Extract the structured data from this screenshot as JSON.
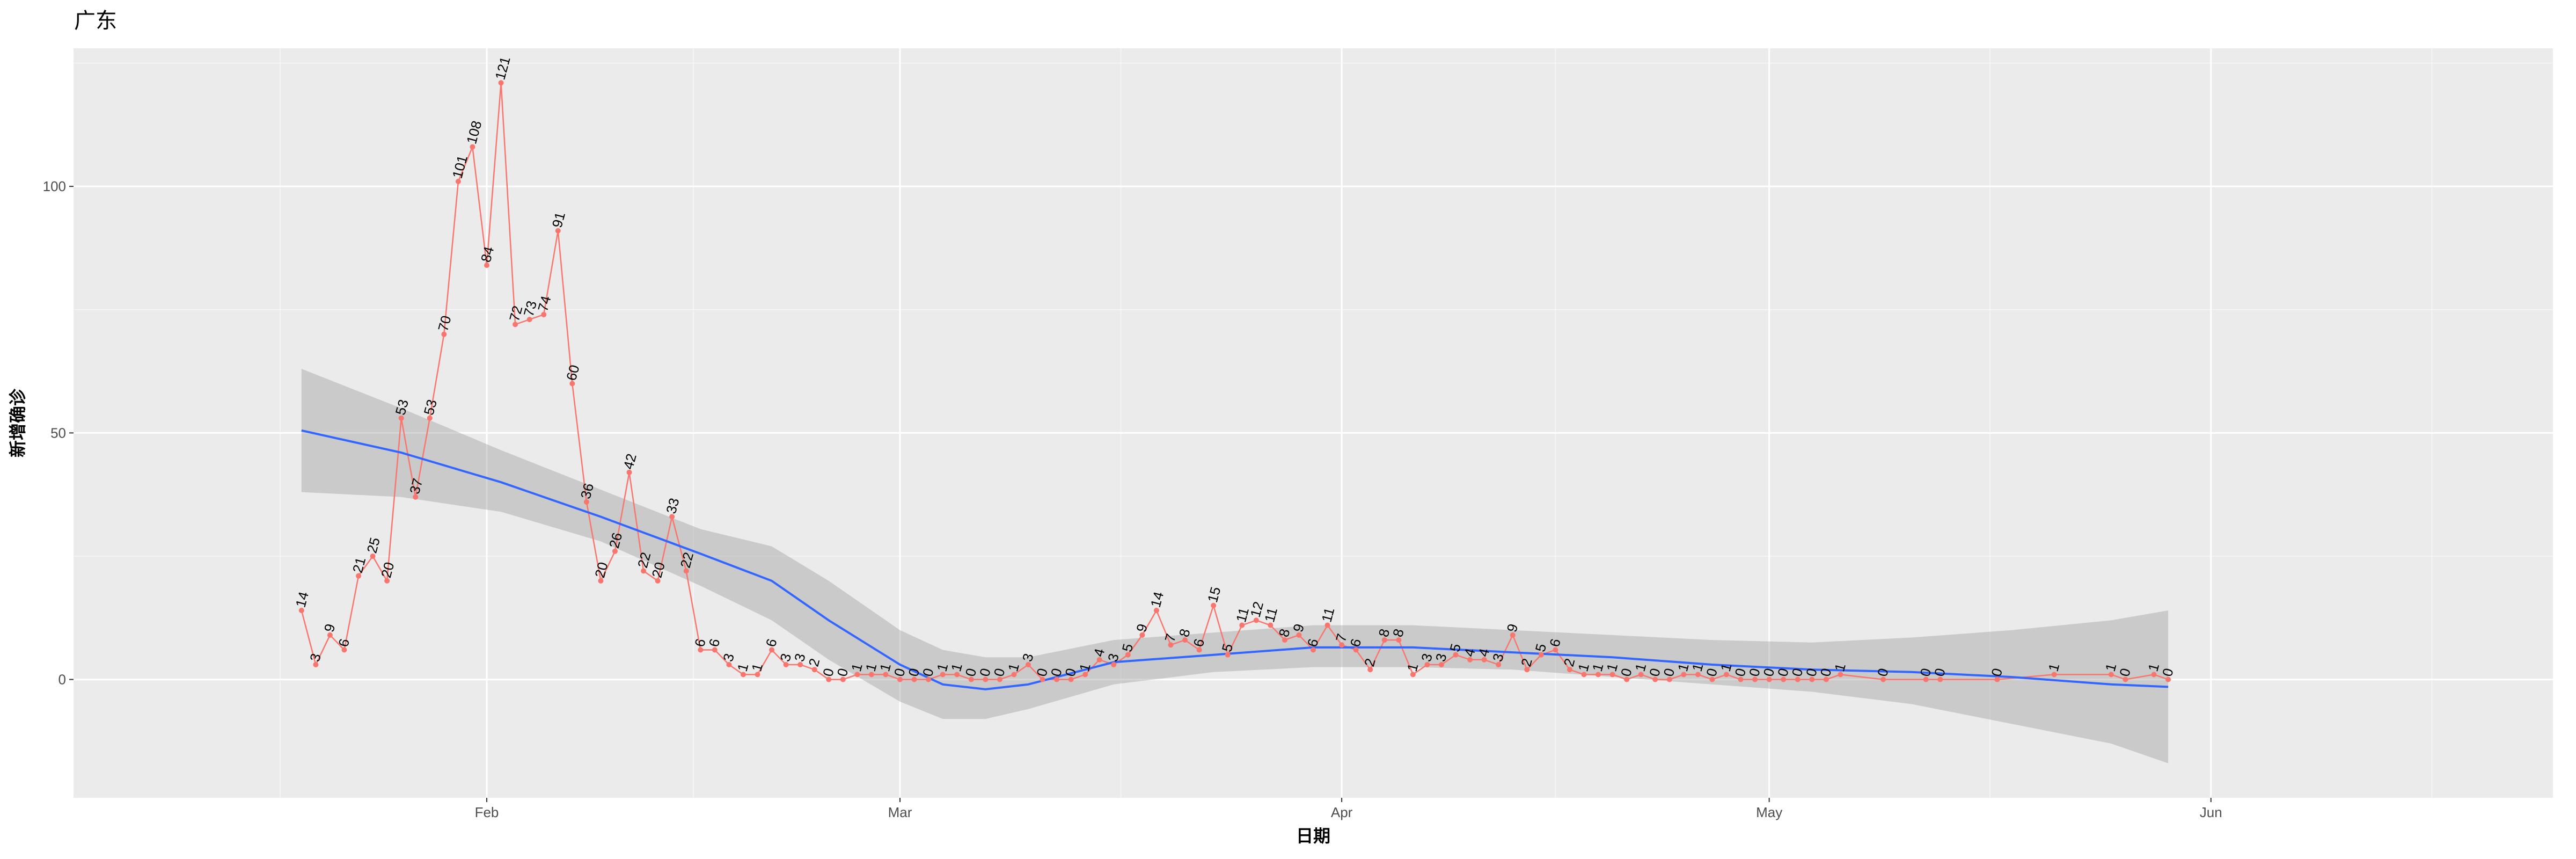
{
  "chart_data": {
    "type": "line",
    "title": "广东",
    "xlabel": "日期",
    "ylabel": "新增确诊",
    "x_tick_labels": [
      "Feb",
      "Mar",
      "Apr",
      "May",
      "Jun"
    ],
    "x_tick_dates": [
      "2020-02-01",
      "2020-03-01",
      "2020-04-01",
      "2020-05-01",
      "2020-06-01"
    ],
    "xlim": [
      "2020-01-03",
      "2020-06-25"
    ],
    "y_ticks": [
      0,
      50,
      100
    ],
    "ylim": [
      -24,
      128
    ],
    "grid": true,
    "legend": "none",
    "series": [
      {
        "kind": "observed",
        "color": "#F8766D",
        "points": [
          {
            "date": "2020-01-19",
            "value": 14
          },
          {
            "date": "2020-01-20",
            "value": 3
          },
          {
            "date": "2020-01-21",
            "value": 9
          },
          {
            "date": "2020-01-22",
            "value": 6
          },
          {
            "date": "2020-01-23",
            "value": 21
          },
          {
            "date": "2020-01-24",
            "value": 25
          },
          {
            "date": "2020-01-25",
            "value": 20
          },
          {
            "date": "2020-01-26",
            "value": 53
          },
          {
            "date": "2020-01-27",
            "value": 37
          },
          {
            "date": "2020-01-28",
            "value": 53
          },
          {
            "date": "2020-01-29",
            "value": 70
          },
          {
            "date": "2020-01-30",
            "value": 101
          },
          {
            "date": "2020-01-31",
            "value": 108
          },
          {
            "date": "2020-02-01",
            "value": 84
          },
          {
            "date": "2020-02-02",
            "value": 121
          },
          {
            "date": "2020-02-03",
            "value": 72
          },
          {
            "date": "2020-02-04",
            "value": 73
          },
          {
            "date": "2020-02-05",
            "value": 74
          },
          {
            "date": "2020-02-06",
            "value": 91
          },
          {
            "date": "2020-02-07",
            "value": 60
          },
          {
            "date": "2020-02-08",
            "value": 36
          },
          {
            "date": "2020-02-09",
            "value": 20
          },
          {
            "date": "2020-02-10",
            "value": 26
          },
          {
            "date": "2020-02-11",
            "value": 42
          },
          {
            "date": "2020-02-12",
            "value": 22
          },
          {
            "date": "2020-02-13",
            "value": 20
          },
          {
            "date": "2020-02-14",
            "value": 33
          },
          {
            "date": "2020-02-15",
            "value": 22
          },
          {
            "date": "2020-02-16",
            "value": 6
          },
          {
            "date": "2020-02-17",
            "value": 6
          },
          {
            "date": "2020-02-18",
            "value": 3
          },
          {
            "date": "2020-02-19",
            "value": 1
          },
          {
            "date": "2020-02-20",
            "value": 1
          },
          {
            "date": "2020-02-21",
            "value": 6
          },
          {
            "date": "2020-02-22",
            "value": 3
          },
          {
            "date": "2020-02-23",
            "value": 3
          },
          {
            "date": "2020-02-24",
            "value": 2
          },
          {
            "date": "2020-02-25",
            "value": 0
          },
          {
            "date": "2020-02-26",
            "value": 0
          },
          {
            "date": "2020-02-27",
            "value": 1
          },
          {
            "date": "2020-02-28",
            "value": 1
          },
          {
            "date": "2020-02-29",
            "value": 1
          },
          {
            "date": "2020-03-01",
            "value": 0
          },
          {
            "date": "2020-03-02",
            "value": 0
          },
          {
            "date": "2020-03-03",
            "value": 0
          },
          {
            "date": "2020-03-04",
            "value": 1
          },
          {
            "date": "2020-03-05",
            "value": 1
          },
          {
            "date": "2020-03-06",
            "value": 0
          },
          {
            "date": "2020-03-07",
            "value": 0
          },
          {
            "date": "2020-03-08",
            "value": 0
          },
          {
            "date": "2020-03-09",
            "value": 1
          },
          {
            "date": "2020-03-10",
            "value": 3
          },
          {
            "date": "2020-03-11",
            "value": 0
          },
          {
            "date": "2020-03-12",
            "value": 0
          },
          {
            "date": "2020-03-13",
            "value": 0
          },
          {
            "date": "2020-03-14",
            "value": 1
          },
          {
            "date": "2020-03-15",
            "value": 4
          },
          {
            "date": "2020-03-16",
            "value": 3
          },
          {
            "date": "2020-03-17",
            "value": 5
          },
          {
            "date": "2020-03-18",
            "value": 9
          },
          {
            "date": "2020-03-19",
            "value": 14
          },
          {
            "date": "2020-03-20",
            "value": 7
          },
          {
            "date": "2020-03-21",
            "value": 8
          },
          {
            "date": "2020-03-22",
            "value": 6
          },
          {
            "date": "2020-03-23",
            "value": 15
          },
          {
            "date": "2020-03-24",
            "value": 5
          },
          {
            "date": "2020-03-25",
            "value": 11
          },
          {
            "date": "2020-03-26",
            "value": 12
          },
          {
            "date": "2020-03-27",
            "value": 11
          },
          {
            "date": "2020-03-28",
            "value": 8
          },
          {
            "date": "2020-03-29",
            "value": 9
          },
          {
            "date": "2020-03-30",
            "value": 6
          },
          {
            "date": "2020-03-31",
            "value": 11
          },
          {
            "date": "2020-04-01",
            "value": 7
          },
          {
            "date": "2020-04-02",
            "value": 6
          },
          {
            "date": "2020-04-03",
            "value": 2
          },
          {
            "date": "2020-04-04",
            "value": 8
          },
          {
            "date": "2020-04-05",
            "value": 8
          },
          {
            "date": "2020-04-06",
            "value": 1
          },
          {
            "date": "2020-04-07",
            "value": 3
          },
          {
            "date": "2020-04-08",
            "value": 3
          },
          {
            "date": "2020-04-09",
            "value": 5
          },
          {
            "date": "2020-04-10",
            "value": 4
          },
          {
            "date": "2020-04-11",
            "value": 4
          },
          {
            "date": "2020-04-12",
            "value": 3
          },
          {
            "date": "2020-04-13",
            "value": 9
          },
          {
            "date": "2020-04-14",
            "value": 2
          },
          {
            "date": "2020-04-15",
            "value": 5
          },
          {
            "date": "2020-04-16",
            "value": 6
          },
          {
            "date": "2020-04-17",
            "value": 2
          },
          {
            "date": "2020-04-18",
            "value": 1
          },
          {
            "date": "2020-04-19",
            "value": 1
          },
          {
            "date": "2020-04-20",
            "value": 1
          },
          {
            "date": "2020-04-21",
            "value": 0
          },
          {
            "date": "2020-04-22",
            "value": 1
          },
          {
            "date": "2020-04-23",
            "value": 0
          },
          {
            "date": "2020-04-24",
            "value": 0
          },
          {
            "date": "2020-04-25",
            "value": 1
          },
          {
            "date": "2020-04-26",
            "value": 1
          },
          {
            "date": "2020-04-27",
            "value": 0
          },
          {
            "date": "2020-04-28",
            "value": 1
          },
          {
            "date": "2020-04-29",
            "value": 0
          },
          {
            "date": "2020-04-30",
            "value": 0
          },
          {
            "date": "2020-05-01",
            "value": 0
          },
          {
            "date": "2020-05-02",
            "value": 0
          },
          {
            "date": "2020-05-03",
            "value": 0
          },
          {
            "date": "2020-05-04",
            "value": 0
          },
          {
            "date": "2020-05-05",
            "value": 0
          },
          {
            "date": "2020-05-06",
            "value": 1
          },
          {
            "date": "2020-05-09",
            "value": 0
          },
          {
            "date": "2020-05-12",
            "value": 0
          },
          {
            "date": "2020-05-13",
            "value": 0
          },
          {
            "date": "2020-05-17",
            "value": 0
          },
          {
            "date": "2020-05-21",
            "value": 1
          },
          {
            "date": "2020-05-25",
            "value": 1
          },
          {
            "date": "2020-05-26",
            "value": 0
          },
          {
            "date": "2020-05-28",
            "value": 1
          },
          {
            "date": "2020-05-29",
            "value": 0
          }
        ]
      },
      {
        "kind": "smoothed trend",
        "color": "#3366FF",
        "points": [
          {
            "date": "2020-01-19",
            "value": 50.5
          },
          {
            "date": "2020-01-26",
            "value": 46
          },
          {
            "date": "2020-02-02",
            "value": 40
          },
          {
            "date": "2020-02-09",
            "value": 33
          },
          {
            "date": "2020-02-16",
            "value": 25.5
          },
          {
            "date": "2020-02-21",
            "value": 20
          },
          {
            "date": "2020-02-25",
            "value": 12
          },
          {
            "date": "2020-03-01",
            "value": 3
          },
          {
            "date": "2020-03-04",
            "value": -1
          },
          {
            "date": "2020-03-07",
            "value": -2
          },
          {
            "date": "2020-03-10",
            "value": -1
          },
          {
            "date": "2020-03-16",
            "value": 3.5
          },
          {
            "date": "2020-03-23",
            "value": 5
          },
          {
            "date": "2020-03-30",
            "value": 6.5
          },
          {
            "date": "2020-04-06",
            "value": 6.5
          },
          {
            "date": "2020-04-13",
            "value": 5.5
          },
          {
            "date": "2020-04-20",
            "value": 4.5
          },
          {
            "date": "2020-04-27",
            "value": 3
          },
          {
            "date": "2020-05-04",
            "value": 2
          },
          {
            "date": "2020-05-11",
            "value": 1.5
          },
          {
            "date": "2020-05-18",
            "value": 0.5
          },
          {
            "date": "2020-05-25",
            "value": -1
          },
          {
            "date": "2020-05-29",
            "value": -1.5
          }
        ]
      },
      {
        "kind": "confidence band",
        "color": "#999999",
        "points": [
          {
            "date": "2020-01-19",
            "lower": 38,
            "upper": 63
          },
          {
            "date": "2020-01-26",
            "lower": 37,
            "upper": 55
          },
          {
            "date": "2020-02-02",
            "lower": 34,
            "upper": 46.5
          },
          {
            "date": "2020-02-09",
            "lower": 28,
            "upper": 38.5
          },
          {
            "date": "2020-02-16",
            "lower": 19,
            "upper": 30.5
          },
          {
            "date": "2020-02-21",
            "lower": 12,
            "upper": 27
          },
          {
            "date": "2020-02-25",
            "lower": 4,
            "upper": 20
          },
          {
            "date": "2020-03-01",
            "lower": -4.5,
            "upper": 10
          },
          {
            "date": "2020-03-04",
            "lower": -8,
            "upper": 6
          },
          {
            "date": "2020-03-07",
            "lower": -8,
            "upper": 4.5
          },
          {
            "date": "2020-03-10",
            "lower": -6,
            "upper": 4.5
          },
          {
            "date": "2020-03-16",
            "lower": -1,
            "upper": 8
          },
          {
            "date": "2020-03-23",
            "lower": 1.5,
            "upper": 9.5
          },
          {
            "date": "2020-03-30",
            "lower": 2.5,
            "upper": 11
          },
          {
            "date": "2020-04-06",
            "lower": 2.5,
            "upper": 11
          },
          {
            "date": "2020-04-13",
            "lower": 2,
            "upper": 10
          },
          {
            "date": "2020-04-20",
            "lower": 0.5,
            "upper": 9
          },
          {
            "date": "2020-04-27",
            "lower": -1,
            "upper": 8
          },
          {
            "date": "2020-05-04",
            "lower": -2.5,
            "upper": 7.5
          },
          {
            "date": "2020-05-11",
            "lower": -5,
            "upper": 8.5
          },
          {
            "date": "2020-05-18",
            "lower": -9,
            "upper": 10
          },
          {
            "date": "2020-05-25",
            "lower": -13,
            "upper": 12
          },
          {
            "date": "2020-05-29",
            "lower": -17,
            "upper": 14
          }
        ]
      }
    ]
  }
}
